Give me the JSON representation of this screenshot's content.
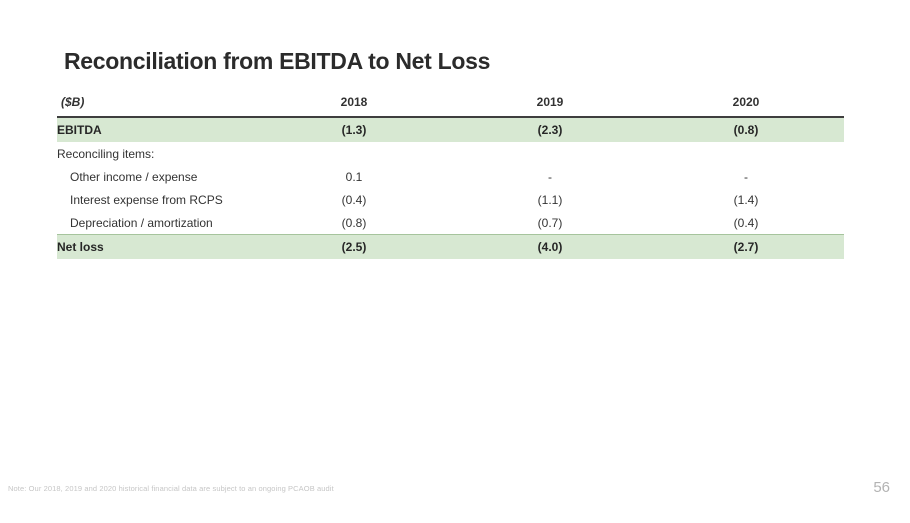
{
  "slide": {
    "title": "Reconciliation from EBITDA to Net Loss",
    "footnote": "Note: Our 2018, 2019 and 2020 historical financial data are subject to an ongoing PCAOB audit",
    "page_number": "56"
  },
  "table": {
    "unit_label": "($B)",
    "columns": [
      "2018",
      "2019",
      "2020"
    ],
    "rows": [
      {
        "label": "EBITDA",
        "style": "highlight",
        "values": [
          "(1.3)",
          "(2.3)",
          "(0.8)"
        ]
      },
      {
        "label": "Reconciling items:",
        "style": "section",
        "values": [
          "",
          "",
          ""
        ]
      },
      {
        "label": "Other income / expense",
        "style": "item",
        "values": [
          "0.1",
          "-",
          "-"
        ]
      },
      {
        "label": "Interest expense from RCPS",
        "style": "item",
        "values": [
          "(0.4)",
          "(1.1)",
          "(1.4)"
        ]
      },
      {
        "label": "Depreciation / amortization",
        "style": "item",
        "values": [
          "(0.8)",
          "(0.7)",
          "(0.4)"
        ]
      },
      {
        "label": "Net loss",
        "style": "highlight-total",
        "values": [
          "(2.5)",
          "(4.0)",
          "(2.7)"
        ]
      }
    ]
  },
  "colors": {
    "highlight_green": "#d7e8d2",
    "header_rule": "#3e3e3e",
    "total_rule": "#a6c49d",
    "text_primary": "#333333",
    "muted_gray": "#c6c6c6"
  }
}
